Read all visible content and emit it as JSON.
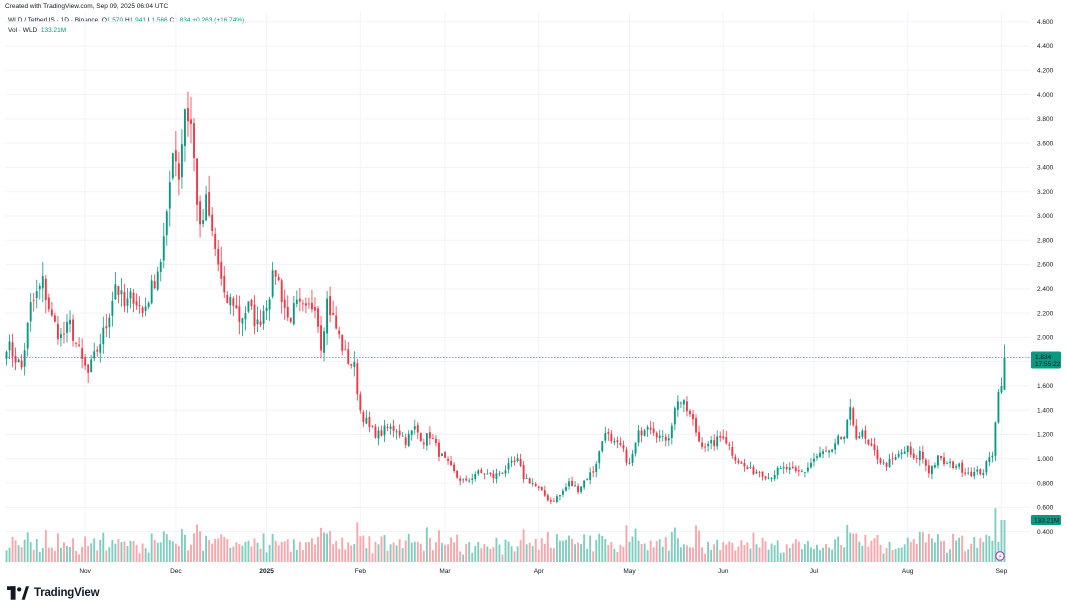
{
  "header": {
    "created": "Created with TradingView.com, Sep 09, 2025 06:04 UTC"
  },
  "legend": {
    "symbol": "WLD / TetherUS · 1D · Binance",
    "o_label": "O",
    "o_value": "1.570",
    "h_label": "H",
    "h_value": "1.941",
    "l_label": "L",
    "l_value": "1.566",
    "c_label": "C",
    "c_value": "1.834",
    "change": "+0.263 (+16.74%)",
    "vol_label": "Vol · WLD",
    "vol_value": "133.21M"
  },
  "price_tag": {
    "price": "1.834",
    "countdown": "17:55:22"
  },
  "volume_tag": {
    "value": "133.21M"
  },
  "brand": {
    "name": "TradingView"
  },
  "colors": {
    "up": "#089981",
    "down": "#f23645",
    "up_vol": "#7fcdbf",
    "down_vol": "#f8a5ab",
    "grid": "#f0f3fa",
    "last_line": "#089981"
  },
  "chart_data": {
    "type": "candlestick",
    "symbol": "WLD / TetherUS",
    "interval": "1D",
    "exchange": "Binance",
    "yaxis": {
      "ticks": [
        "4.600",
        "4.400",
        "4.200",
        "4.000",
        "3.800",
        "3.600",
        "3.400",
        "3.200",
        "3.000",
        "2.800",
        "2.600",
        "2.400",
        "2.200",
        "2.000",
        "1.800",
        "1.600",
        "1.400",
        "1.200",
        "1.000",
        "0.800",
        "0.600",
        "0.400"
      ],
      "range": [
        0.15,
        4.68
      ]
    },
    "xaxis": {
      "labels": [
        "Nov",
        "Dec",
        "2025",
        "Feb",
        "Mar",
        "Apr",
        "May",
        "Jun",
        "Jul",
        "Aug",
        "Sep"
      ],
      "label_days": [
        26,
        56,
        86,
        117,
        145,
        176,
        206,
        237,
        267,
        298,
        329
      ],
      "total_days": 340
    },
    "anchors_close": [
      [
        0,
        1.95
      ],
      [
        5,
        1.75
      ],
      [
        8,
        2.25
      ],
      [
        12,
        2.45
      ],
      [
        15,
        2.15
      ],
      [
        18,
        2.0
      ],
      [
        21,
        2.1
      ],
      [
        25,
        1.8
      ],
      [
        27,
        1.7
      ],
      [
        30,
        1.9
      ],
      [
        33,
        2.1
      ],
      [
        36,
        2.45
      ],
      [
        39,
        2.25
      ],
      [
        42,
        2.35
      ],
      [
        45,
        2.2
      ],
      [
        48,
        2.4
      ],
      [
        51,
        2.65
      ],
      [
        53,
        2.95
      ],
      [
        55,
        3.6
      ],
      [
        57,
        3.35
      ],
      [
        59,
        3.9
      ],
      [
        61,
        3.75
      ],
      [
        64,
        2.85
      ],
      [
        66,
        3.1
      ],
      [
        68,
        2.85
      ],
      [
        70,
        2.6
      ],
      [
        72,
        2.3
      ],
      [
        75,
        2.3
      ],
      [
        77,
        2.15
      ],
      [
        80,
        2.25
      ],
      [
        83,
        2.1
      ],
      [
        86,
        2.3
      ],
      [
        89,
        2.55
      ],
      [
        91,
        2.35
      ],
      [
        93,
        2.15
      ],
      [
        96,
        2.25
      ],
      [
        99,
        2.2
      ],
      [
        102,
        2.3
      ],
      [
        104,
        1.95
      ],
      [
        106,
        2.3
      ],
      [
        108,
        2.15
      ],
      [
        110,
        2.0
      ],
      [
        112,
        1.85
      ],
      [
        115,
        1.75
      ],
      [
        117,
        1.4
      ],
      [
        120,
        1.25
      ],
      [
        123,
        1.2
      ],
      [
        126,
        1.25
      ],
      [
        129,
        1.25
      ],
      [
        132,
        1.15
      ],
      [
        135,
        1.25
      ],
      [
        138,
        1.15
      ],
      [
        140,
        1.2
      ],
      [
        143,
        1.05
      ],
      [
        146,
        0.95
      ],
      [
        149,
        0.85
      ],
      [
        152,
        0.8
      ],
      [
        155,
        0.88
      ],
      [
        158,
        0.88
      ],
      [
        161,
        0.85
      ],
      [
        164,
        0.9
      ],
      [
        167,
        0.95
      ],
      [
        169,
        0.98
      ],
      [
        171,
        0.85
      ],
      [
        174,
        0.8
      ],
      [
        177,
        0.72
      ],
      [
        180,
        0.65
      ],
      [
        183,
        0.7
      ],
      [
        186,
        0.8
      ],
      [
        189,
        0.75
      ],
      [
        192,
        0.85
      ],
      [
        194,
        0.9
      ],
      [
        196,
        1.05
      ],
      [
        198,
        1.25
      ],
      [
        200,
        1.12
      ],
      [
        203,
        1.1
      ],
      [
        206,
        0.95
      ],
      [
        209,
        1.2
      ],
      [
        212,
        1.3
      ],
      [
        214,
        1.25
      ],
      [
        217,
        1.15
      ],
      [
        219,
        1.2
      ],
      [
        222,
        1.5
      ],
      [
        225,
        1.4
      ],
      [
        227,
        1.3
      ],
      [
        229,
        1.15
      ],
      [
        232,
        1.1
      ],
      [
        235,
        1.15
      ],
      [
        237,
        1.2
      ],
      [
        240,
        1.05
      ],
      [
        243,
        0.95
      ],
      [
        246,
        0.9
      ],
      [
        249,
        0.9
      ],
      [
        252,
        0.85
      ],
      [
        255,
        0.9
      ],
      [
        258,
        0.92
      ],
      [
        261,
        0.88
      ],
      [
        264,
        0.9
      ],
      [
        267,
        1.0
      ],
      [
        270,
        1.05
      ],
      [
        273,
        1.05
      ],
      [
        275,
        1.15
      ],
      [
        277,
        1.18
      ],
      [
        279,
        1.38
      ],
      [
        281,
        1.2
      ],
      [
        283,
        1.2
      ],
      [
        285,
        1.1
      ],
      [
        287,
        1.05
      ],
      [
        290,
        0.95
      ],
      [
        293,
        0.98
      ],
      [
        296,
        1.05
      ],
      [
        298,
        1.08
      ],
      [
        300,
        0.98
      ],
      [
        302,
        1.05
      ],
      [
        305,
        0.9
      ],
      [
        308,
        1.0
      ],
      [
        311,
        0.95
      ],
      [
        314,
        0.95
      ],
      [
        317,
        0.9
      ],
      [
        320,
        0.88
      ],
      [
        323,
        0.9
      ],
      [
        326,
        1.05
      ],
      [
        327,
        1.3
      ],
      [
        328,
        1.55
      ],
      [
        329,
        1.6
      ],
      [
        330,
        1.834
      ]
    ],
    "candle_count": 331,
    "last": {
      "open": 1.57,
      "high": 1.941,
      "low": 1.566,
      "close": 1.834,
      "volume": "133.21M",
      "change": 0.263,
      "change_pct": 16.74
    }
  }
}
